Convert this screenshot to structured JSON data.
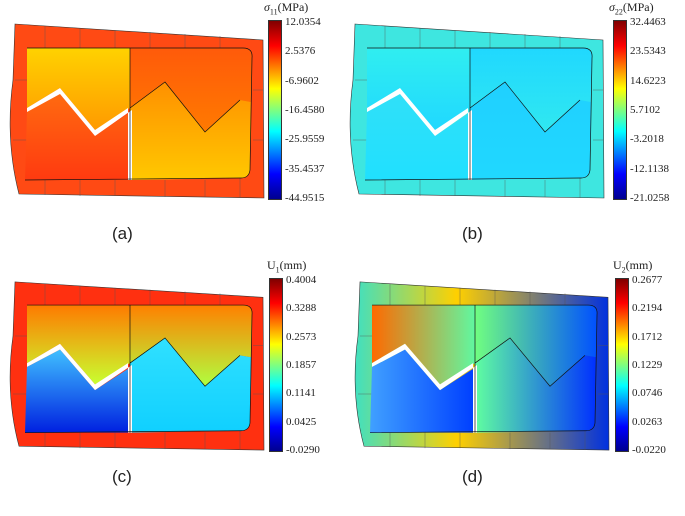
{
  "chart_data": [
    {
      "type": "heatmap",
      "panel": "(a)",
      "quantity_symbol": "σ",
      "quantity_sub": "11",
      "unit": "(MPa)",
      "colorbar_ticks": [
        "12.0354",
        "2.5376",
        "-6.9602",
        "-16.4580",
        "-25.9559",
        "-35.4537",
        "-44.9515"
      ],
      "range": [
        -44.9515,
        12.0354
      ]
    },
    {
      "type": "heatmap",
      "panel": "(b)",
      "quantity_symbol": "σ",
      "quantity_sub": "22",
      "unit": "(MPa)",
      "colorbar_ticks": [
        "32.4463",
        "23.5343",
        "14.6223",
        "5.7102",
        "-3.2018",
        "-12.1138",
        "-21.0258"
      ],
      "range": [
        -21.0258,
        32.4463
      ]
    },
    {
      "type": "heatmap",
      "panel": "(c)",
      "quantity_symbol": "U",
      "quantity_sub": "1",
      "unit": "(mm)",
      "colorbar_ticks": [
        "0.4004",
        "0.3288",
        "0.2573",
        "0.1857",
        "0.1141",
        "0.0425",
        "-0.0290"
      ],
      "range": [
        -0.029,
        0.4004
      ]
    },
    {
      "type": "heatmap",
      "panel": "(d)",
      "quantity_symbol": "U",
      "quantity_sub": "2",
      "unit": "(mm)",
      "colorbar_ticks": [
        "0.2677",
        "0.2194",
        "0.1712",
        "0.1229",
        "0.0746",
        "0.0263",
        "-0.0220"
      ],
      "range": [
        -0.022,
        0.2677
      ]
    }
  ]
}
